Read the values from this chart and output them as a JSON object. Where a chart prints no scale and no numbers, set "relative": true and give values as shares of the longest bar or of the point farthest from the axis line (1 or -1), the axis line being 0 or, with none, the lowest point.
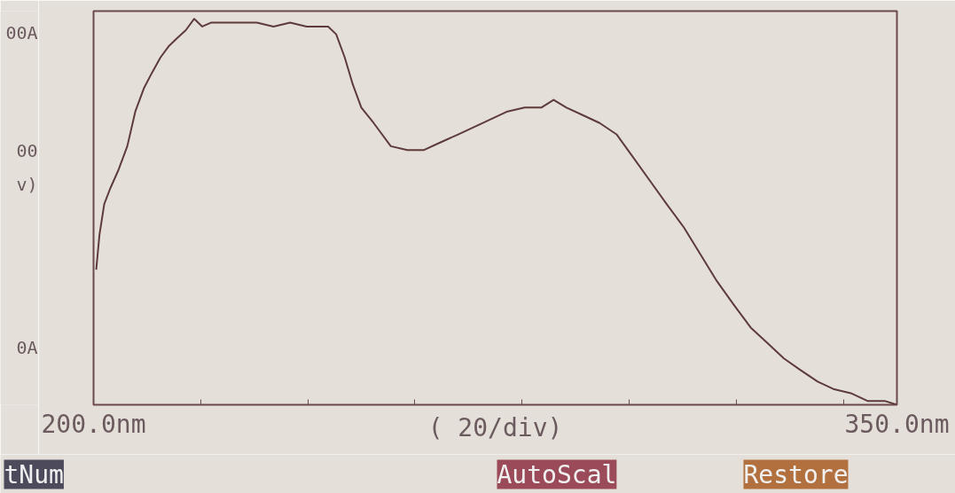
{
  "chart_data": {
    "type": "line",
    "relative": true,
    "xlabel": "( 20/div)",
    "x": [
      200.5,
      201.1,
      202.0,
      203.1,
      204.7,
      206.3,
      207.8,
      209.4,
      210.9,
      212.5,
      214.1,
      215.6,
      217.2,
      218.8,
      220.3,
      221.9,
      224.2,
      227.3,
      230.5,
      233.6,
      236.7,
      239.8,
      243.8,
      245.3,
      246.9,
      248.4,
      250.0,
      252.3,
      255.5,
      258.6,
      261.7,
      264.8,
      268.0,
      271.1,
      274.2,
      277.3,
      280.5,
      283.6,
      285.9,
      288.3,
      291.4,
      294.5,
      297.7,
      300.8,
      303.9,
      307.0,
      310.2,
      313.3,
      316.4,
      319.5,
      322.7,
      325.8,
      328.9,
      332.0,
      335.2,
      338.3,
      341.4,
      344.5,
      347.7,
      350.0
    ],
    "series": [
      {
        "color": "#5e3b3b",
        "values": [
          0.35,
          0.44,
          0.52,
          0.56,
          0.61,
          0.67,
          0.76,
          0.82,
          0.86,
          0.9,
          0.93,
          0.95,
          0.97,
          1.0,
          0.98,
          0.99,
          0.99,
          0.99,
          0.99,
          0.98,
          0.99,
          0.98,
          0.98,
          0.96,
          0.9,
          0.83,
          0.77,
          0.73,
          0.67,
          0.66,
          0.66,
          0.68,
          0.7,
          0.72,
          0.74,
          0.76,
          0.77,
          0.77,
          0.79,
          0.77,
          0.75,
          0.73,
          0.7,
          0.64,
          0.58,
          0.52,
          0.46,
          0.39,
          0.32,
          0.26,
          0.2,
          0.16,
          0.12,
          0.09,
          0.06,
          0.04,
          0.03,
          0.01,
          0.01,
          0.0
        ]
      }
    ],
    "xlim": [
      200,
      350
    ],
    "xticks": [
      {
        "value": 200,
        "label": "200.0nm"
      },
      {
        "value": 220,
        "label": null
      },
      {
        "value": 240,
        "label": null
      },
      {
        "value": 260,
        "label": null
      },
      {
        "value": 280,
        "label": null
      },
      {
        "value": 300,
        "label": null
      },
      {
        "value": 320,
        "label": null
      },
      {
        "value": 340,
        "label": null
      },
      {
        "value": 350,
        "label": "350.0nm"
      }
    ],
    "annotations": [
      "00A",
      "00",
      "v)",
      "0A",
      "tNum",
      "AutoScal",
      "Restore"
    ],
    "grid": false,
    "marker": "none",
    "line_style": "solid"
  }
}
